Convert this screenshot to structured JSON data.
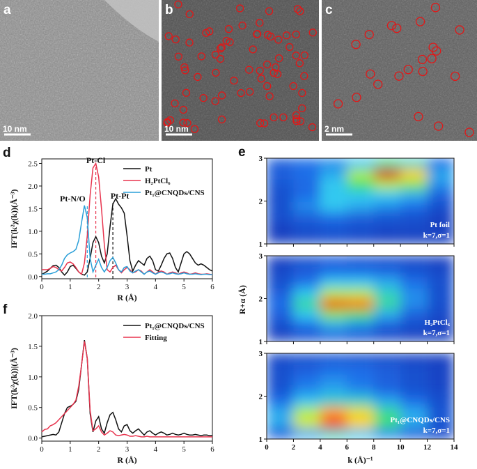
{
  "figure": {
    "panels": [
      {
        "label": "a",
        "scale_bar": "10 nm"
      },
      {
        "label": "b",
        "scale_bar": "10 nm"
      },
      {
        "label": "c",
        "scale_bar": "2 nm"
      }
    ]
  },
  "chart_data": [
    {
      "panel_label": "d",
      "type": "line",
      "x_label": "R (Å)",
      "y_label": "IFT(k²χ(k))(Å⁻³)",
      "x": [
        0,
        0.1,
        0.2,
        0.3,
        0.4,
        0.5,
        0.6,
        0.7,
        0.8,
        0.9,
        1,
        1.1,
        1.2,
        1.3,
        1.4,
        1.5,
        1.6,
        1.7,
        1.8,
        1.9,
        2,
        2.1,
        2.2,
        2.3,
        2.4,
        2.5,
        2.6,
        2.7,
        2.8,
        2.9,
        3,
        3.1,
        3.2,
        3.3,
        3.4,
        3.5,
        3.6,
        3.7,
        3.8,
        3.9,
        4,
        4.1,
        4.2,
        4.3,
        4.4,
        4.5,
        4.6,
        4.7,
        4.8,
        4.9,
        5,
        5.1,
        5.2,
        5.3,
        5.4,
        5.5,
        5.6,
        5.7,
        5.8,
        5.9,
        6
      ],
      "xlim": [
        0,
        6
      ],
      "xticks": [
        0,
        1,
        2,
        3,
        4,
        5,
        6
      ],
      "ylim": [
        -0.05,
        2.6
      ],
      "yticks": [
        {
          "value": 0,
          "label": "0.0"
        },
        0.5,
        {
          "value": 1,
          "label": "1.0"
        },
        1.5,
        {
          "value": 2,
          "label": "2.0"
        },
        2.5
      ],
      "legend": "upper right",
      "series": [
        {
          "name": "Pt",
          "color": "#111111",
          "values": [
            0.05,
            0.08,
            0.12,
            0.18,
            0.24,
            0.25,
            0.2,
            0.1,
            0.03,
            0.1,
            0.22,
            0.25,
            0.18,
            0.1,
            0.05,
            0.03,
            0.1,
            0.4,
            0.75,
            0.88,
            0.75,
            0.45,
            0.3,
            0.5,
            1.1,
            1.6,
            1.72,
            1.6,
            1.52,
            1.4,
            0.9,
            0.35,
            0.12,
            0.25,
            0.35,
            0.3,
            0.25,
            0.4,
            0.45,
            0.35,
            0.15,
            0.12,
            0.25,
            0.4,
            0.5,
            0.52,
            0.4,
            0.2,
            0.1,
            0.3,
            0.5,
            0.55,
            0.5,
            0.4,
            0.3,
            0.25,
            0.28,
            0.25,
            0.2,
            0.15,
            0.12
          ]
        },
        {
          "name": "H₂PtCl₆",
          "color": "#e8344e",
          "values": [
            0.15,
            0.15,
            0.15,
            0.18,
            0.22,
            0.2,
            0.15,
            0.12,
            0.2,
            0.3,
            0.32,
            0.28,
            0.2,
            0.1,
            0.05,
            0.3,
            0.9,
            1.8,
            2.4,
            2.5,
            2.2,
            1.5,
            0.7,
            0.15,
            0.1,
            0.2,
            0.25,
            0.15,
            0.08,
            0.15,
            0.2,
            0.15,
            0.08,
            0.1,
            0.15,
            0.12,
            0.05,
            0.1,
            0.15,
            0.1,
            0.05,
            0.1,
            0.12,
            0.1,
            0.05,
            0.08,
            0.1,
            0.08,
            0.05,
            0.08,
            0.1,
            0.08,
            0.05,
            0.06,
            0.08,
            0.06,
            0.05,
            0.05,
            0.06,
            0.05,
            0.04
          ]
        },
        {
          "name": "Pt₁@CNQDs/CNS",
          "color": "#2a9fd8",
          "values": [
            0.05,
            0.05,
            0.06,
            0.06,
            0.08,
            0.1,
            0.15,
            0.25,
            0.4,
            0.48,
            0.52,
            0.55,
            0.6,
            0.8,
            1.2,
            1.57,
            1.3,
            0.4,
            0.1,
            0.25,
            0.38,
            0.2,
            0.1,
            0.2,
            0.35,
            0.42,
            0.3,
            0.15,
            0.1,
            0.2,
            0.22,
            0.12,
            0.08,
            0.12,
            0.15,
            0.1,
            0.05,
            0.1,
            0.12,
            0.08,
            0.05,
            0.08,
            0.1,
            0.08,
            0.05,
            0.06,
            0.08,
            0.06,
            0.05,
            0.06,
            0.08,
            0.06,
            0.05,
            0.05,
            0.06,
            0.05,
            0.04,
            0.05,
            0.05,
            0.04,
            0.04
          ]
        }
      ],
      "annotations": [
        {
          "text": "Pt-Cl",
          "x": 1.9,
          "color": "#e8344e"
        },
        {
          "text": "Pt-N/O",
          "x": 1.6,
          "color": "#2a9fd8"
        },
        {
          "text": "Pt-Pt",
          "x": 2.5,
          "color": "#111111"
        }
      ]
    },
    {
      "panel_label": "e",
      "type": "contour",
      "x_label": "k (Å)⁻¹",
      "y_label": "R+α (Å)",
      "xlim": [
        0,
        14
      ],
      "xticks": [
        0,
        2,
        4,
        6,
        8,
        10,
        12,
        14
      ],
      "ylim": [
        1,
        3
      ],
      "yticks": [
        1,
        2,
        3
      ],
      "colormap": "jet",
      "x": [
        1,
        3,
        5,
        7,
        9,
        11,
        13
      ],
      "y": [
        2.875,
        2.625,
        2.375,
        2.125,
        1.875,
        1.625,
        1.375,
        1.125
      ],
      "plots": [
        {
          "label": "Pt foil",
          "params": "k=7,σ=1",
          "z": [
            [
              0.15,
              0.2,
              0.25,
              0.35,
              0.45,
              0.4,
              0.2
            ],
            [
              0.15,
              0.2,
              0.3,
              0.6,
              0.95,
              0.75,
              0.3
            ],
            [
              0.12,
              0.18,
              0.35,
              0.5,
              0.6,
              0.55,
              0.25
            ],
            [
              0.1,
              0.2,
              0.35,
              0.35,
              0.35,
              0.3,
              0.15
            ],
            [
              0.1,
              0.25,
              0.35,
              0.3,
              0.25,
              0.2,
              0.1
            ],
            [
              0.1,
              0.15,
              0.2,
              0.15,
              0.12,
              0.1,
              0.05
            ],
            [
              0.05,
              0.1,
              0.12,
              0.1,
              0.08,
              0.08,
              0.05
            ],
            [
              0.05,
              0.08,
              0.1,
              0.08,
              0.05,
              0.05,
              0.05
            ]
          ]
        },
        {
          "label": "H₂PtCl₆",
          "params": "k=7,σ=1",
          "z": [
            [
              0.05,
              0.1,
              0.15,
              0.12,
              0.1,
              0.08,
              0.05
            ],
            [
              0.08,
              0.15,
              0.2,
              0.2,
              0.18,
              0.12,
              0.08
            ],
            [
              0.1,
              0.2,
              0.35,
              0.35,
              0.3,
              0.2,
              0.1
            ],
            [
              0.15,
              0.35,
              0.6,
              0.6,
              0.4,
              0.25,
              0.1
            ],
            [
              0.2,
              0.45,
              0.9,
              0.85,
              0.45,
              0.25,
              0.1
            ],
            [
              0.15,
              0.35,
              0.55,
              0.5,
              0.3,
              0.15,
              0.08
            ],
            [
              0.1,
              0.2,
              0.3,
              0.25,
              0.15,
              0.1,
              0.05
            ],
            [
              0.05,
              0.12,
              0.15,
              0.12,
              0.08,
              0.05,
              0.05
            ]
          ]
        },
        {
          "label": "Pt₁@CNQDs/CNS",
          "params": "k=7,σ=1",
          "z": [
            [
              0.08,
              0.1,
              0.12,
              0.1,
              0.08,
              0.06,
              0.05
            ],
            [
              0.1,
              0.15,
              0.2,
              0.2,
              0.15,
              0.1,
              0.06
            ],
            [
              0.1,
              0.2,
              0.25,
              0.2,
              0.15,
              0.1,
              0.06
            ],
            [
              0.12,
              0.25,
              0.3,
              0.25,
              0.18,
              0.12,
              0.08
            ],
            [
              0.2,
              0.35,
              0.4,
              0.4,
              0.3,
              0.2,
              0.1
            ],
            [
              0.3,
              0.6,
              0.8,
              0.7,
              0.45,
              0.3,
              0.12
            ],
            [
              0.3,
              0.65,
              0.9,
              0.75,
              0.5,
              0.3,
              0.12
            ],
            [
              0.15,
              0.3,
              0.4,
              0.35,
              0.25,
              0.15,
              0.08
            ]
          ]
        }
      ]
    },
    {
      "panel_label": "f",
      "type": "line",
      "x_label": "R (Å)",
      "y_label": "IFT(k²χ(k))|(Å⁻³)",
      "x": [
        0,
        0.1,
        0.2,
        0.3,
        0.4,
        0.5,
        0.6,
        0.7,
        0.8,
        0.9,
        1,
        1.1,
        1.2,
        1.3,
        1.4,
        1.5,
        1.6,
        1.7,
        1.8,
        1.9,
        2,
        2.1,
        2.2,
        2.3,
        2.4,
        2.5,
        2.6,
        2.7,
        2.8,
        2.9,
        3,
        3.1,
        3.2,
        3.3,
        3.4,
        3.5,
        3.6,
        3.7,
        3.8,
        3.9,
        4,
        4.1,
        4.2,
        4.3,
        4.4,
        4.5,
        4.6,
        4.7,
        4.8,
        4.9,
        5,
        5.1,
        5.2,
        5.3,
        5.4,
        5.5,
        5.6,
        5.7,
        5.8,
        5.9,
        6
      ],
      "xlim": [
        0,
        6
      ],
      "xticks": [
        0,
        1,
        2,
        3,
        4,
        5,
        6
      ],
      "ylim": [
        -0.05,
        2.0
      ],
      "yticks": [
        {
          "value": 0,
          "label": "0.0"
        },
        0.5,
        {
          "value": 1,
          "label": "1.0"
        },
        1.5,
        {
          "value": 2,
          "label": "2.0"
        }
      ],
      "legend": "upper right",
      "series": [
        {
          "name": "Pt₁@CNQDs/CNS",
          "color": "#111111",
          "values": [
            0.02,
            0.03,
            0.04,
            0.05,
            0.06,
            0.05,
            0.1,
            0.25,
            0.4,
            0.5,
            0.52,
            0.55,
            0.6,
            0.8,
            1.2,
            1.6,
            1.3,
            0.4,
            0.1,
            0.28,
            0.35,
            0.15,
            0.08,
            0.25,
            0.38,
            0.42,
            0.3,
            0.15,
            0.1,
            0.2,
            0.22,
            0.12,
            0.08,
            0.12,
            0.15,
            0.1,
            0.05,
            0.1,
            0.12,
            0.08,
            0.05,
            0.08,
            0.1,
            0.08,
            0.05,
            0.06,
            0.08,
            0.06,
            0.05,
            0.06,
            0.08,
            0.06,
            0.05,
            0.05,
            0.06,
            0.05,
            0.04,
            0.05,
            0.05,
            0.04,
            0.04
          ]
        },
        {
          "name": "Fitting",
          "color": "#e8344e",
          "values": [
            0.1,
            0.14,
            0.15,
            0.2,
            0.22,
            0.25,
            0.3,
            0.35,
            0.4,
            0.45,
            0.5,
            0.55,
            0.62,
            0.85,
            1.2,
            1.58,
            1.3,
            0.45,
            0.12,
            0.15,
            0.2,
            0.1,
            0.05,
            0.08,
            0.12,
            0.1,
            0.05,
            0.04,
            0.05,
            0.06,
            0.05,
            0.03,
            0.03,
            0.04,
            0.03,
            0.02,
            0.02,
            0.03,
            0.02,
            0.02,
            0.02,
            0.02,
            0.02,
            0.02,
            0.02,
            0.02,
            0.02,
            0.02,
            0.02,
            0.02,
            0.02,
            0.02,
            0.02,
            0.02,
            0.02,
            0.02,
            0.02,
            0.02,
            0.02,
            0.02,
            0.02
          ]
        }
      ]
    }
  ]
}
